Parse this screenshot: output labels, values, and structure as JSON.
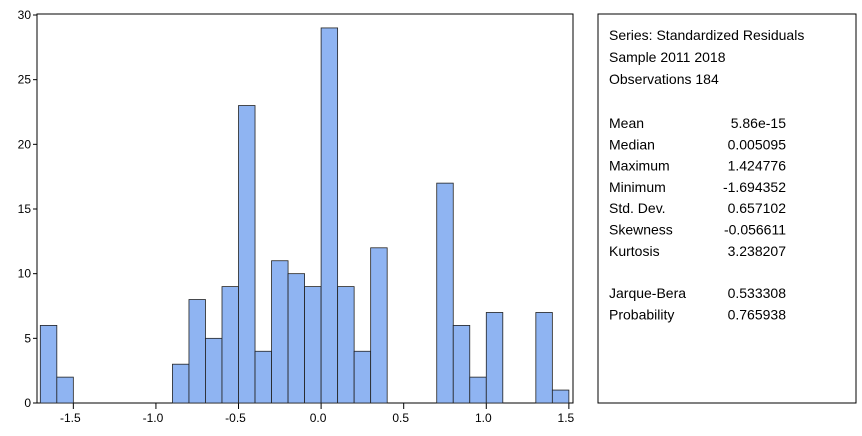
{
  "chart_data": {
    "type": "histogram",
    "bins": [
      -1.7,
      -1.6,
      -1.5,
      -1.4,
      -1.3,
      -1.2,
      -1.1,
      -1.0,
      -0.9,
      -0.8,
      -0.7,
      -0.6,
      -0.5,
      -0.4,
      -0.3,
      -0.2,
      -0.1,
      0.0,
      0.1,
      0.2,
      0.3,
      0.4,
      0.5,
      0.6,
      0.7,
      0.8,
      0.9,
      1.0,
      1.1,
      1.2,
      1.3,
      1.4,
      1.5
    ],
    "counts": [
      6,
      2,
      0,
      0,
      0,
      0,
      0,
      0,
      3,
      8,
      5,
      9,
      23,
      4,
      11,
      10,
      9,
      29,
      9,
      4,
      12,
      0,
      0,
      0,
      17,
      6,
      2,
      7,
      0,
      0,
      7,
      1
    ],
    "color": "#8fb4f2",
    "xlim": [
      -1.72,
      1.525
    ],
    "xticks": [
      -1.5,
      -1.0,
      -0.5,
      0.0,
      0.5,
      1.0,
      1.5
    ],
    "xtick_labels": [
      "-1.5",
      "-1.0",
      "-0.5",
      "0.0",
      "0.5",
      "1.0",
      "1.5"
    ],
    "ylim": [
      0,
      30
    ],
    "yticks": [
      0,
      5,
      10,
      15,
      20,
      25,
      30
    ],
    "stats_header": [
      "Series: Standardized Residuals",
      "Sample 2011 2018",
      "Observations 184"
    ],
    "stats": [
      [
        "Mean",
        "5.86e-15"
      ],
      [
        "Median",
        "0.005095"
      ],
      [
        "Maximum",
        "1.424776"
      ],
      [
        "Minimum",
        "-1.694352"
      ],
      [
        "Std. Dev.",
        "0.657102"
      ],
      [
        "Skewness",
        "-0.056611"
      ],
      [
        "Kurtosis",
        "3.238207"
      ]
    ],
    "tests": [
      [
        "Jarque-Bera",
        "0.533308"
      ],
      [
        "Probability",
        "0.765938"
      ]
    ]
  }
}
